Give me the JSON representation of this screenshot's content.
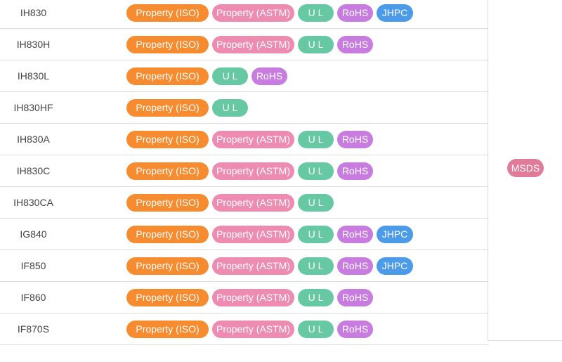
{
  "rows": [
    {
      "name": "IH830",
      "badges": [
        "Property (ISO)",
        "Property (ASTM)",
        "U L",
        "RoHS",
        "JHPC"
      ]
    },
    {
      "name": "IH830H",
      "badges": [
        "Property (ISO)",
        "Property (ASTM)",
        "U L",
        "RoHS"
      ]
    },
    {
      "name": "IH830L",
      "badges": [
        "Property (ISO)",
        "U L",
        "RoHS"
      ]
    },
    {
      "name": "IH830HF",
      "badges": [
        "Property (ISO)",
        "U L"
      ]
    },
    {
      "name": "IH830A",
      "badges": [
        "Property (ISO)",
        "Property (ASTM)",
        "U L",
        "RoHS"
      ]
    },
    {
      "name": "IH830C",
      "badges": [
        "Property (ISO)",
        "Property (ASTM)",
        "U L",
        "RoHS"
      ]
    },
    {
      "name": "IH830CA",
      "badges": [
        "Property (ISO)",
        "Property (ASTM)",
        "U L"
      ]
    },
    {
      "name": "IG840",
      "badges": [
        "Property (ISO)",
        "Property (ASTM)",
        "U L",
        "RoHS",
        "JHPC"
      ]
    },
    {
      "name": "IF850",
      "badges": [
        "Property (ISO)",
        "Property (ASTM)",
        "U L",
        "RoHS",
        "JHPC"
      ]
    },
    {
      "name": "IF860",
      "badges": [
        "Property (ISO)",
        "Property (ASTM)",
        "U L",
        "RoHS"
      ]
    },
    {
      "name": "IF870S",
      "badges": [
        "Property (ISO)",
        "Property (ASTM)",
        "U L",
        "RoHS"
      ]
    }
  ],
  "msds_label": "MSDS",
  "colors": {
    "iso": "#f78b2f",
    "astm": "#ee8bb1",
    "ul": "#67c9a4",
    "rohs": "#c97ce0",
    "jhpc": "#4b9be8",
    "msds": "#e07b99"
  }
}
